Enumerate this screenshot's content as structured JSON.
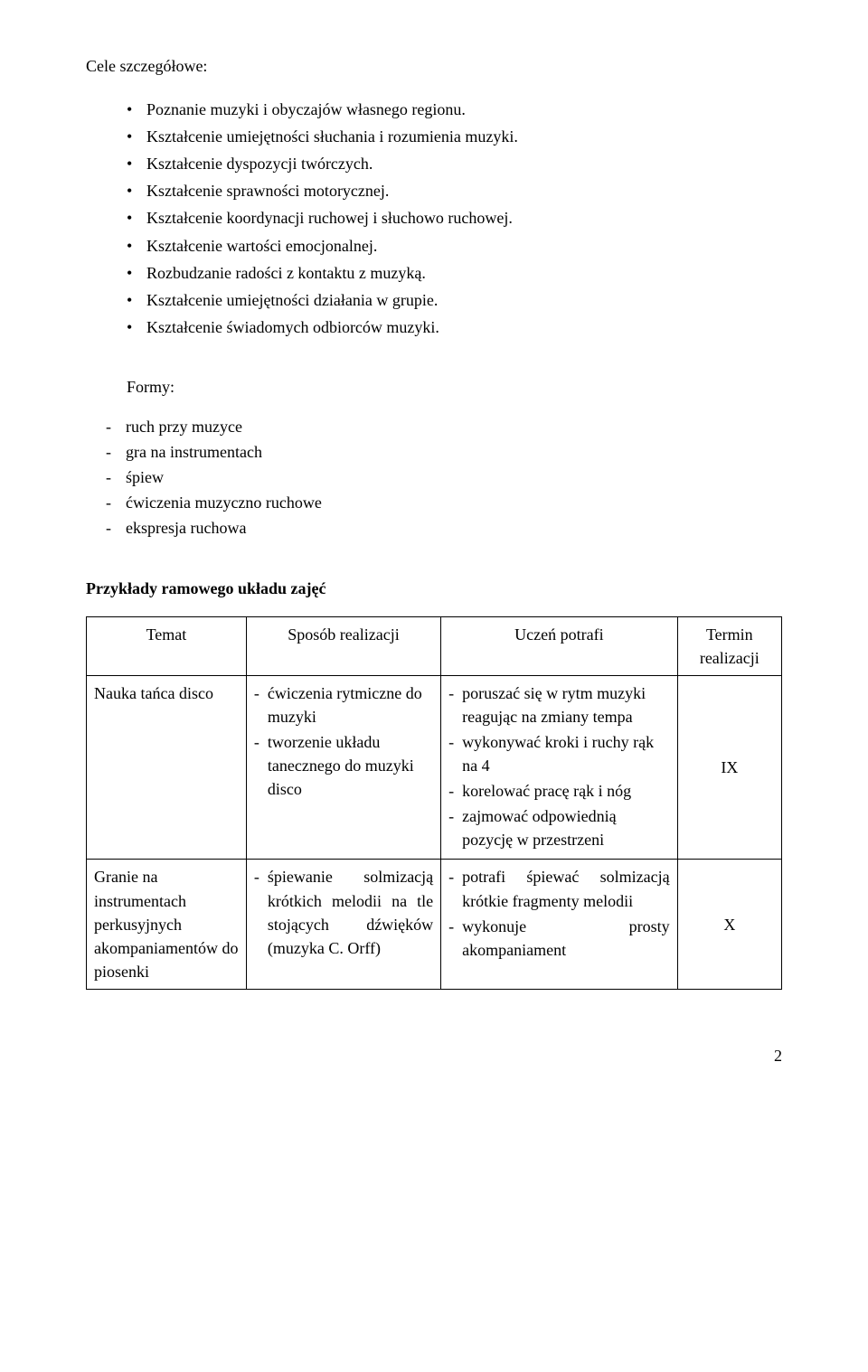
{
  "heading_goals": "Cele szczegółowe:",
  "goals": [
    "Poznanie muzyki i obyczajów własnego regionu.",
    "Kształcenie umiejętności słuchania i rozumienia muzyki.",
    "Kształcenie dyspozycji twórczych.",
    "Kształcenie sprawności motorycznej.",
    "Kształcenie koordynacji ruchowej i słuchowo ruchowej.",
    "Kształcenie wartości emocjonalnej.",
    "Rozbudzanie radości z kontaktu z muzyką.",
    "Kształcenie umiejętności działania w grupie.",
    "Kształcenie świadomych odbiorców muzyki."
  ],
  "formy_label": "Formy:",
  "formy": [
    "ruch przy muzyce",
    "gra na instrumentach",
    "śpiew",
    "ćwiczenia muzyczno ruchowe",
    "ekspresja ruchowa"
  ],
  "table_heading": "Przykłady ramowego układu zajęć",
  "columns": {
    "c1": "Temat",
    "c2": "Sposób realizacji",
    "c3": "Uczeń potrafi",
    "c4": "Termin realizacji"
  },
  "rows": [
    {
      "temat": "Nauka tańca disco",
      "sposob": [
        "ćwiczenia rytmiczne do muzyki",
        "tworzenie układu tanecznego do muzyki disco"
      ],
      "potrafi": [
        "poruszać się w rytm muzyki reagując na zmiany tempa",
        "wykonywać kroki i ruchy rąk na 4",
        "korelować pracę rąk i nóg",
        "zajmować odpowiednią pozycję w przestrzeni"
      ],
      "termin": "IX"
    },
    {
      "temat": "Granie na instrumentach perkusyjnych akompaniamentów do piosenki",
      "sposob": [
        "śpiewanie solmizacją krótkich melodii na tle stojących dźwięków (muzyka C. Orff)"
      ],
      "potrafi": [
        "potrafi śpiewać solmizacją krótkie fragmenty melodii",
        "wykonuje prosty akompaniament"
      ],
      "termin": "X"
    }
  ],
  "page_number": "2"
}
